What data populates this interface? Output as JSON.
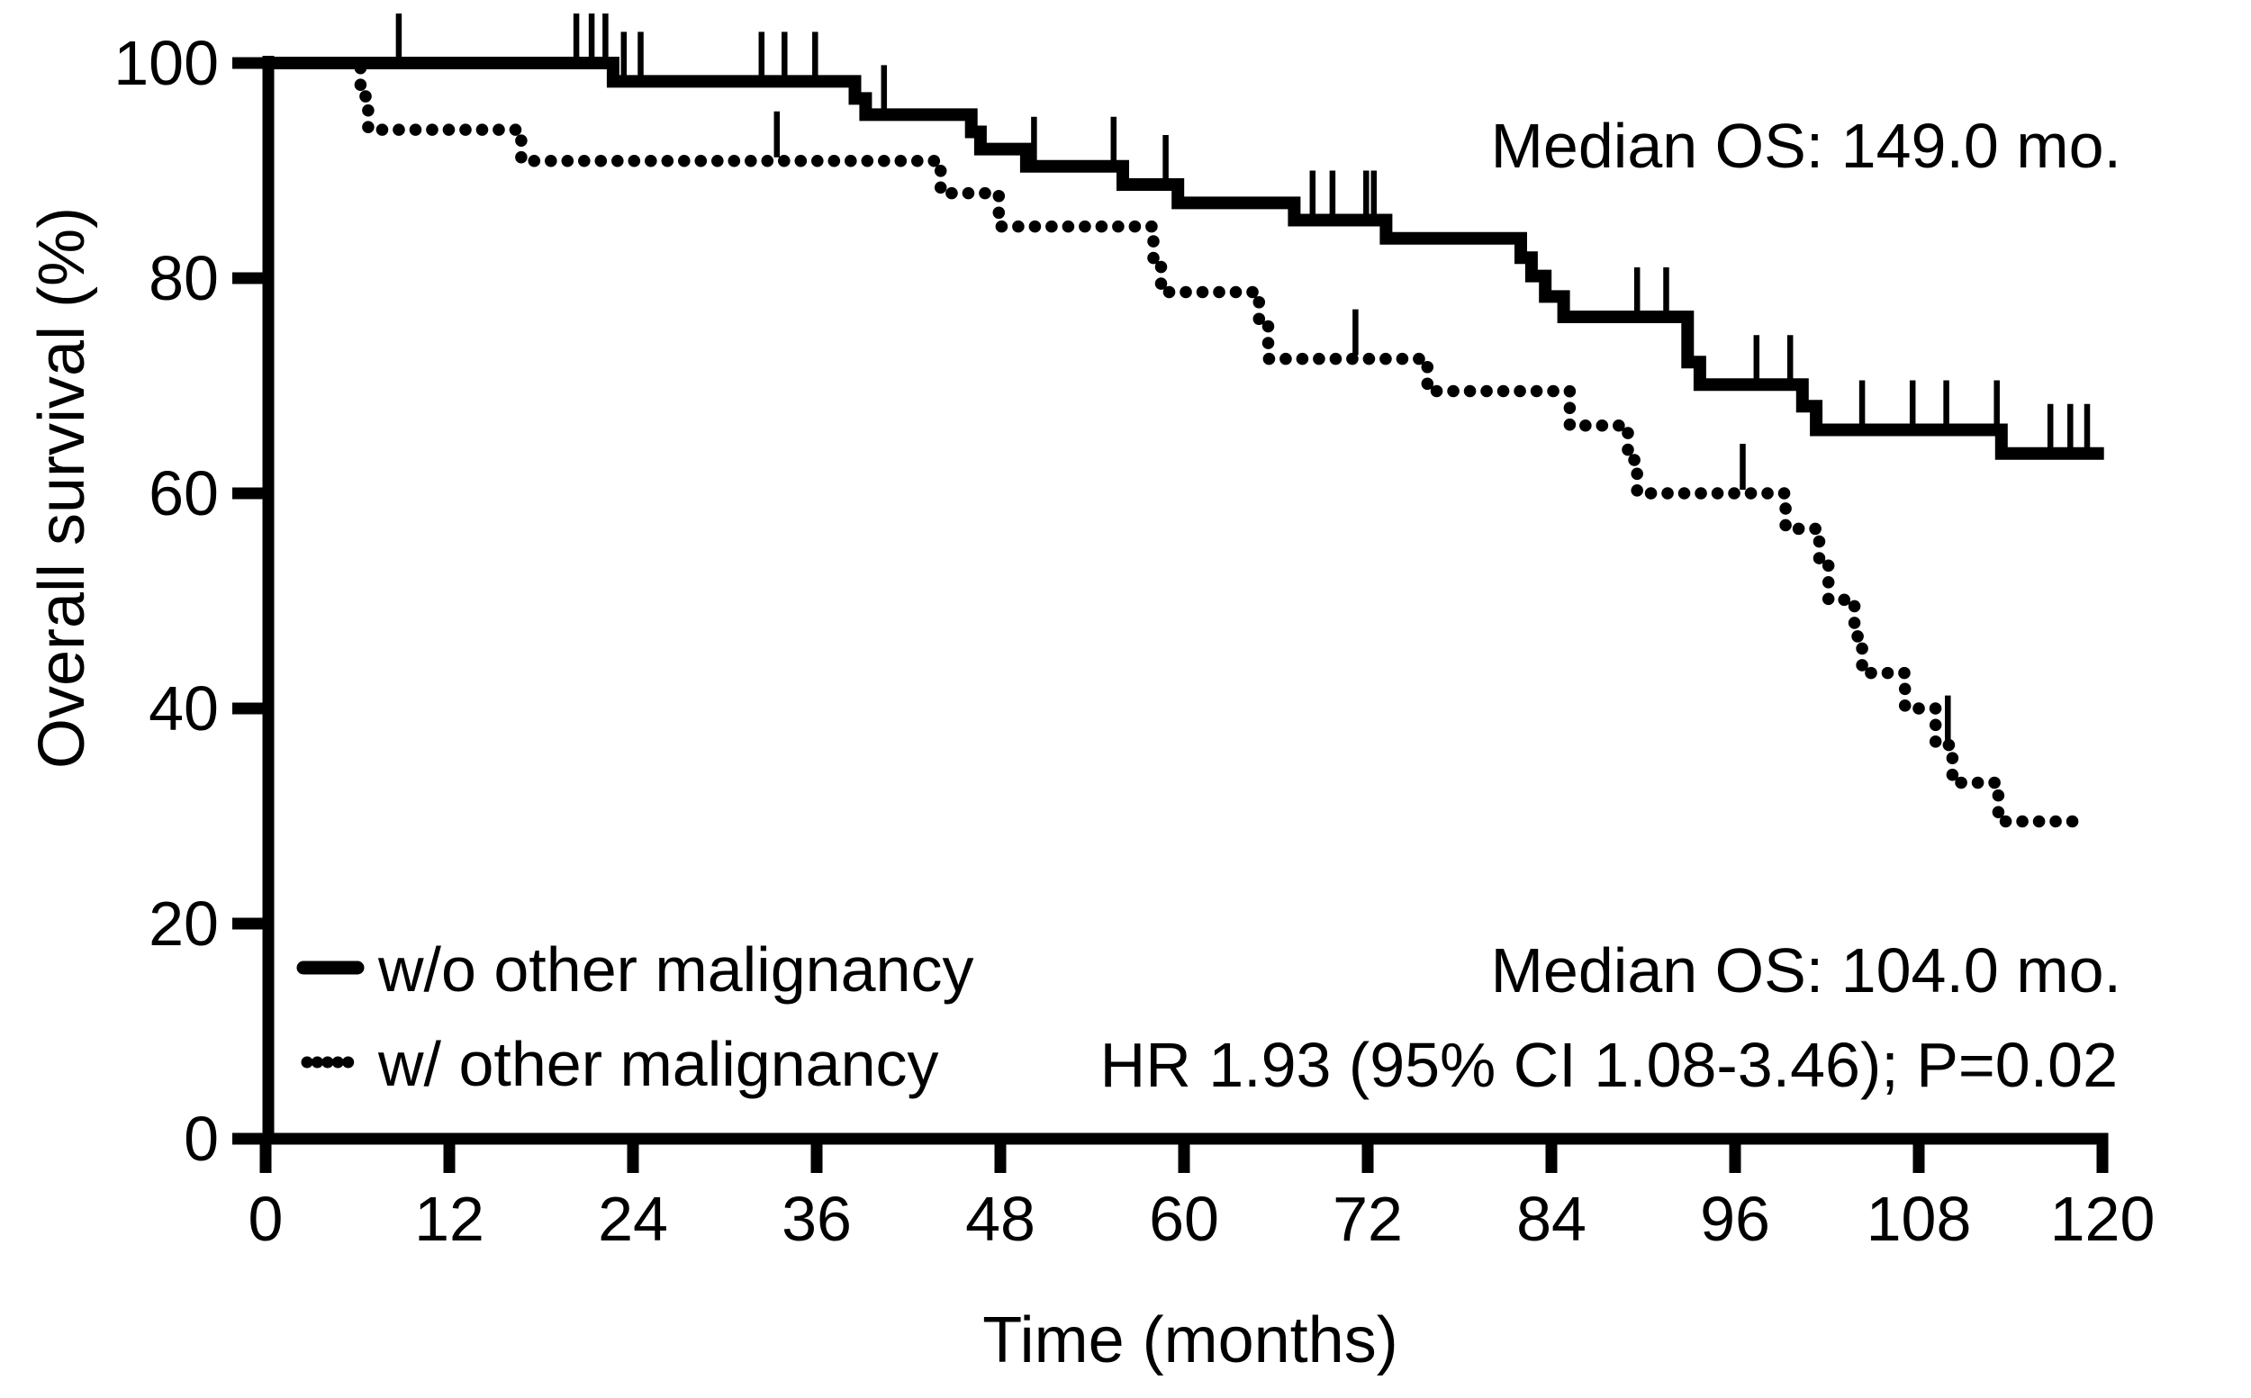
{
  "figure": {
    "colors": {
      "foreground": "#000000",
      "background": "#ffffff"
    },
    "y_axis": {
      "title": "Overall survival (%)"
    },
    "x_axis": {
      "title": "Time (months)"
    },
    "legend": {
      "item1_label": "w/o other malignancy",
      "item2_label": "w/ other malignancy"
    },
    "annotations": {
      "median_solid": "Median OS: 149.0 mo.",
      "median_dotted": "Median OS: 104.0 mo.",
      "hr": "HR 1.93 (95% CI 1.08-3.46); P=0.02"
    }
  },
  "chart_data": {
    "type": "line",
    "subtype": "kaplan-meier-step",
    "title": "",
    "xlabel": "Time (months)",
    "ylabel": "Overall survival (%)",
    "xlim": [
      0,
      120
    ],
    "ylim": [
      0,
      100
    ],
    "x_ticks": [
      0,
      12,
      24,
      36,
      48,
      60,
      72,
      84,
      96,
      108,
      120
    ],
    "y_ticks": [
      0,
      20,
      40,
      60,
      80,
      100
    ],
    "grid": false,
    "legend_position": "lower-left-inside",
    "stats": {
      "hr_text": "HR 1.93 (95% CI 1.08-3.46); P=0.02",
      "p_value": "0.02",
      "hr": "1.93",
      "ci_95": "1.08-3.46"
    },
    "series": [
      {
        "name": "w/o other malignancy",
        "style": "solid",
        "median_os_months": "149.0",
        "steps": [
          [
            0,
            100
          ],
          [
            22.7,
            98.3
          ],
          [
            38.5,
            96.7
          ],
          [
            39.2,
            95.2
          ],
          [
            46.1,
            93.6
          ],
          [
            46.7,
            92.0
          ],
          [
            49.7,
            90.4
          ],
          [
            56.0,
            88.7
          ],
          [
            59.6,
            87.0
          ],
          [
            67.2,
            85.4
          ],
          [
            73.2,
            83.7
          ],
          [
            82.0,
            81.9
          ],
          [
            82.7,
            80.2
          ],
          [
            83.6,
            78.3
          ],
          [
            84.8,
            76.4
          ],
          [
            92.9,
            72.2
          ],
          [
            93.7,
            70.1
          ],
          [
            100.4,
            68.1
          ],
          [
            101.3,
            65.9
          ],
          [
            113.4,
            63.7
          ]
        ],
        "end_month": 120.1,
        "censor_months": [
          8.7,
          20.3,
          21.3,
          22.2,
          23.4,
          24.5,
          32.4,
          33.9,
          35.9,
          40.4,
          50.2,
          55.4,
          58.8,
          68.4,
          69.7,
          71.9,
          72.4,
          89.6,
          91.5,
          97.4,
          99.6,
          104.3,
          107.6,
          109.8,
          113.1,
          116.6,
          117.9,
          119.0
        ]
      },
      {
        "name": "w/ other malignancy",
        "style": "dotted",
        "median_os_months": "104.0",
        "steps": [
          [
            0,
            100
          ],
          [
            6.2,
            96.9
          ],
          [
            6.7,
            93.8
          ],
          [
            16.7,
            90.9
          ],
          [
            44.1,
            87.9
          ],
          [
            47.9,
            84.8
          ],
          [
            58.0,
            81.7
          ],
          [
            58.5,
            78.7
          ],
          [
            64.9,
            75.6
          ],
          [
            65.5,
            72.5
          ],
          [
            75.9,
            69.5
          ],
          [
            85.2,
            66.3
          ],
          [
            89.0,
            63.1
          ],
          [
            89.6,
            60.0
          ],
          [
            99.3,
            56.7
          ],
          [
            101.5,
            53.4
          ],
          [
            102.1,
            50.1
          ],
          [
            103.8,
            46.7
          ],
          [
            104.3,
            43.3
          ],
          [
            107.1,
            40.0
          ],
          [
            109.1,
            36.6
          ],
          [
            110.2,
            33.1
          ],
          [
            113.2,
            29.5
          ]
        ],
        "end_month": 118.9,
        "censor_months": [
          33.4,
          71.2,
          96.5,
          109.9
        ]
      }
    ]
  }
}
